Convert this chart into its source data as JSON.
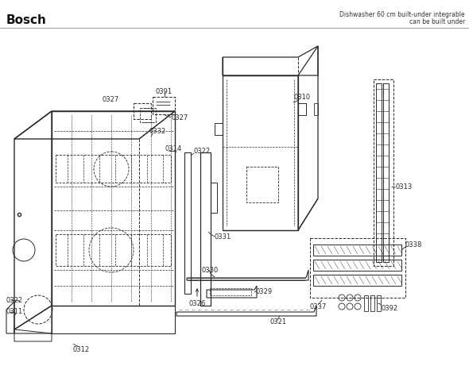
{
  "title": "Bosch",
  "subtitle_line1": "Dishwasher 60 cm built-under integrable",
  "subtitle_line2": "can be built under",
  "line_color": "#2a2a2a",
  "bg_color": "#ffffff",
  "figsize": [
    5.9,
    4.9
  ],
  "dpi": 100
}
